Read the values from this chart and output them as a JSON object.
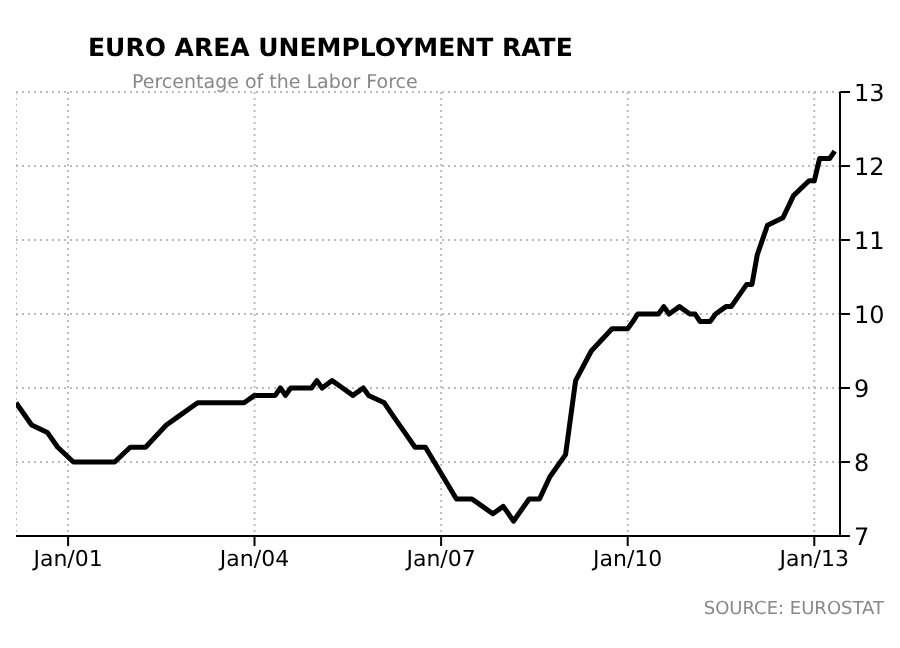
{
  "chart_data": {
    "type": "line",
    "title": "EURO AREA UNEMPLOYMENT RATE",
    "subtitle": "Percentage of the Labor Force",
    "annotations": [
      "SOURCE:  EUROSTAT"
    ],
    "x": [
      "2000-03",
      "2000-06",
      "2000-09",
      "2000-11",
      "2001-02",
      "2001-10",
      "2002-01",
      "2002-04",
      "2002-08",
      "2002-10",
      "2003-02",
      "2003-11",
      "2004-01",
      "2004-05",
      "2004-06",
      "2004-07",
      "2004-08",
      "2004-12",
      "2005-01",
      "2005-02",
      "2005-04",
      "2005-06",
      "2005-08",
      "2005-10",
      "2005-11",
      "2006-02",
      "2006-04",
      "2006-06",
      "2006-08",
      "2006-10",
      "2007-04",
      "2007-07",
      "2007-09",
      "2007-11",
      "2008-01",
      "2008-02",
      "2008-03",
      "2008-06",
      "2008-08",
      "2008-10",
      "2009-01",
      "2009-03",
      "2009-06",
      "2009-10",
      "2010-01",
      "2010-02",
      "2010-03",
      "2010-07",
      "2010-08",
      "2010-09",
      "2010-11",
      "2011-01",
      "2011-02",
      "2011-03",
      "2011-05",
      "2011-06",
      "2011-08",
      "2011-09",
      "2011-12",
      "2012-01",
      "2012-02",
      "2012-04",
      "2012-07",
      "2012-09",
      "2012-12",
      "2013-01",
      "2013-02",
      "2013-04",
      "2013-05"
    ],
    "series": [
      {
        "color": "#000000",
        "values": [
          8.8,
          8.5,
          8.4,
          8.2,
          8.0,
          8.0,
          8.2,
          8.2,
          8.5,
          8.6,
          8.8,
          8.8,
          8.9,
          8.9,
          9.0,
          8.9,
          9.0,
          9.0,
          9.1,
          9.0,
          9.1,
          9.0,
          8.9,
          9.0,
          8.9,
          8.8,
          8.6,
          8.4,
          8.2,
          8.2,
          7.5,
          7.5,
          7.4,
          7.3,
          7.4,
          7.3,
          7.2,
          7.5,
          7.5,
          7.8,
          8.1,
          9.1,
          9.5,
          9.8,
          9.8,
          9.9,
          10.0,
          10.0,
          10.1,
          10.0,
          10.1,
          10.0,
          10.0,
          9.9,
          9.9,
          10.0,
          10.1,
          10.1,
          10.4,
          10.4,
          10.8,
          11.2,
          11.3,
          11.6,
          11.8,
          11.8,
          12.1,
          12.1,
          12.2
        ]
      }
    ],
    "xlim": [
      "2000-03",
      "2013-06"
    ],
    "xticks": [
      {
        "value": "2001-01",
        "label": "Jan/01"
      },
      {
        "value": "2004-01",
        "label": "Jan/04"
      },
      {
        "value": "2007-01",
        "label": "Jan/07"
      },
      {
        "value": "2010-01",
        "label": "Jan/10"
      },
      {
        "value": "2013-01",
        "label": "Jan/13"
      }
    ],
    "ylim": [
      7,
      13
    ],
    "yticks": [
      7,
      8,
      9,
      10,
      11,
      12,
      13
    ],
    "grid": true,
    "line_style": "solid",
    "legend": false
  }
}
